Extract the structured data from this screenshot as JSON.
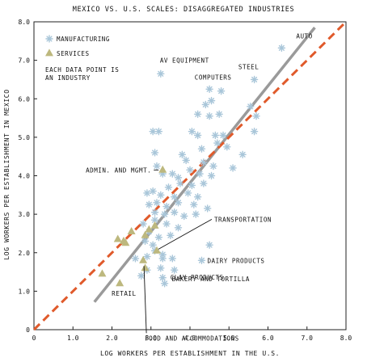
{
  "chart_data": {
    "type": "scatter",
    "title": "MEXICO VS. U.S. SCALES: DISAGGREGATED INDUSTRIES",
    "xlabel": "LOG WORKERS PER ESTABLISHMENT IN THE U.S.",
    "ylabel": "LOG WORKERS PER ESTABLISHMENT IN MEXICO",
    "xlim": [
      0,
      8
    ],
    "ylim": [
      0,
      8
    ],
    "x_ticks": [
      "0",
      "1.0",
      "2.0",
      "3.0",
      "4.0",
      "5.0",
      "6.0",
      "7.0",
      "8.0"
    ],
    "y_ticks": [
      "0",
      "1.0",
      "2.0",
      "3.0",
      "4.0",
      "5.0",
      "6.0",
      "7.0",
      "8.0"
    ],
    "grid": false,
    "legend_position": "top-left",
    "legend_note": "EACH DATA POINT IS AN INDUSTRY",
    "colors": {
      "manufacturing": "#a9c6d9",
      "services": "#bdb87e",
      "fit_line": "#9a9a9a",
      "reference_line": "#e05a2b"
    },
    "series": [
      {
        "name": "MANUFACTURING",
        "marker": "asterisk",
        "points": [
          [
            6.35,
            7.32
          ],
          [
            3.25,
            6.65
          ],
          [
            5.65,
            6.5
          ],
          [
            4.5,
            6.25
          ],
          [
            4.8,
            6.2
          ],
          [
            4.55,
            5.95
          ],
          [
            5.55,
            5.8
          ],
          [
            5.7,
            5.55
          ],
          [
            4.4,
            5.85
          ],
          [
            4.2,
            5.6
          ],
          [
            4.75,
            5.6
          ],
          [
            4.5,
            5.55
          ],
          [
            3.05,
            5.15
          ],
          [
            3.2,
            5.15
          ],
          [
            4.05,
            5.15
          ],
          [
            4.2,
            5.05
          ],
          [
            4.65,
            5.05
          ],
          [
            4.85,
            5.05
          ],
          [
            4.7,
            4.85
          ],
          [
            5.65,
            5.15
          ],
          [
            3.1,
            4.6
          ],
          [
            3.8,
            4.55
          ],
          [
            4.3,
            4.7
          ],
          [
            4.95,
            4.75
          ],
          [
            5.35,
            4.55
          ],
          [
            3.15,
            4.25
          ],
          [
            3.9,
            4.4
          ],
          [
            4.35,
            4.35
          ],
          [
            4.6,
            4.25
          ],
          [
            5.1,
            4.2
          ],
          [
            3.3,
            4.05
          ],
          [
            3.55,
            4.05
          ],
          [
            3.7,
            3.95
          ],
          [
            4.0,
            4.15
          ],
          [
            4.25,
            4.05
          ],
          [
            4.55,
            4.0
          ],
          [
            3.75,
            3.8
          ],
          [
            4.05,
            3.75
          ],
          [
            4.35,
            3.8
          ],
          [
            2.9,
            3.55
          ],
          [
            3.05,
            3.6
          ],
          [
            3.25,
            3.5
          ],
          [
            3.45,
            3.7
          ],
          [
            3.6,
            3.45
          ],
          [
            3.95,
            3.55
          ],
          [
            4.2,
            3.45
          ],
          [
            2.95,
            3.25
          ],
          [
            3.15,
            3.3
          ],
          [
            3.4,
            3.2
          ],
          [
            3.7,
            3.3
          ],
          [
            4.1,
            3.25
          ],
          [
            4.45,
            3.15
          ],
          [
            3.1,
            3.05
          ],
          [
            3.35,
            3.0
          ],
          [
            3.6,
            3.05
          ],
          [
            3.85,
            2.95
          ],
          [
            4.15,
            3.0
          ],
          [
            3.1,
            2.85
          ],
          [
            3.4,
            2.75
          ],
          [
            3.7,
            2.65
          ],
          [
            2.8,
            2.75
          ],
          [
            2.95,
            2.55
          ],
          [
            3.2,
            2.4
          ],
          [
            3.5,
            2.45
          ],
          [
            2.85,
            2.3
          ],
          [
            3.05,
            2.2
          ],
          [
            4.5,
            2.2
          ],
          [
            3.1,
            2.05
          ],
          [
            3.3,
            1.95
          ],
          [
            2.9,
            1.9
          ],
          [
            3.3,
            1.85
          ],
          [
            3.55,
            1.85
          ],
          [
            4.3,
            1.8
          ],
          [
            3.25,
            1.6
          ],
          [
            3.6,
            1.55
          ],
          [
            2.9,
            1.55
          ],
          [
            3.3,
            1.35
          ],
          [
            3.35,
            1.2
          ],
          [
            2.6,
            1.85
          ],
          [
            2.75,
            1.4
          ]
        ]
      },
      {
        "name": "SERVICES",
        "marker": "triangle",
        "points": [
          [
            3.3,
            4.15
          ],
          [
            3.1,
            2.7
          ],
          [
            2.95,
            2.6
          ],
          [
            2.5,
            2.55
          ],
          [
            2.85,
            2.45
          ],
          [
            2.15,
            2.35
          ],
          [
            2.3,
            2.3
          ],
          [
            2.35,
            2.25
          ],
          [
            3.15,
            2.05
          ],
          [
            2.8,
            1.8
          ],
          [
            2.85,
            1.6
          ],
          [
            1.75,
            1.45
          ],
          [
            2.2,
            1.2
          ]
        ]
      }
    ],
    "fit_line": {
      "from": [
        1.55,
        0.72
      ],
      "to": [
        7.2,
        7.85
      ]
    },
    "reference_line": {
      "from": [
        0,
        0
      ],
      "to": [
        8,
        8
      ]
    },
    "annotations": [
      {
        "text": "AUTO",
        "x": 6.35,
        "y": 7.32
      },
      {
        "text": "AV EQUIPMENT",
        "x": 3.25,
        "y": 6.65
      },
      {
        "text": "STEEL",
        "x": 5.65,
        "y": 6.5
      },
      {
        "text": "COMPUTERS",
        "x": 5.65,
        "y": 6.5
      },
      {
        "text": "ADMIN. AND MGMT.",
        "x": 3.3,
        "y": 4.15
      },
      {
        "text": "TRANSPORTATION",
        "x": 3.15,
        "y": 2.05
      },
      {
        "text": "DAIRY PRODUCTS",
        "x": 4.3,
        "y": 1.8
      },
      {
        "text": "CLAY PRODUCTS",
        "x": 3.6,
        "y": 1.55
      },
      {
        "text": "BAKERY AND TORTILLA",
        "x": 3.35,
        "y": 1.2
      },
      {
        "text": "RETAIL",
        "x": 2.2,
        "y": 1.2
      },
      {
        "text": "FOOD AND ACCOMMODATIONS",
        "x": 2.8,
        "y": 1.8
      }
    ]
  }
}
